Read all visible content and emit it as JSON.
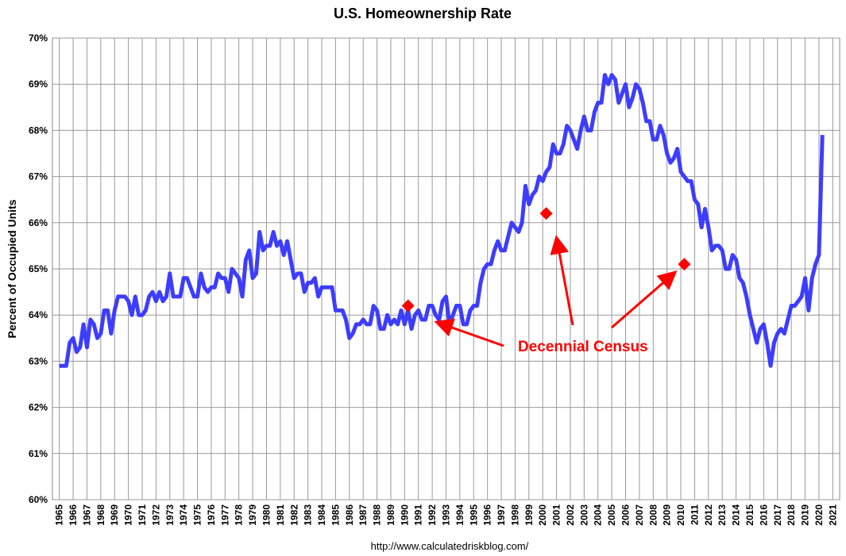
{
  "chart_data": {
    "type": "line",
    "title": "U.S. Homeownership Rate",
    "y_label": "Percent of Occupied Units",
    "source": "http://www.calculatedriskblog.com/",
    "annotation": "Decennial Census",
    "color": "#3d3dff",
    "x": [
      1965,
      1965.25,
      1965.5,
      1965.75,
      1966,
      1966.25,
      1966.5,
      1966.75,
      1967,
      1967.25,
      1967.5,
      1967.75,
      1968,
      1968.25,
      1968.5,
      1968.75,
      1969,
      1969.25,
      1969.5,
      1969.75,
      1970,
      1970.25,
      1970.5,
      1970.75,
      1971,
      1971.25,
      1971.5,
      1971.75,
      1972,
      1972.25,
      1972.5,
      1972.75,
      1973,
      1973.25,
      1973.5,
      1973.75,
      1974,
      1974.25,
      1974.5,
      1974.75,
      1975,
      1975.25,
      1975.5,
      1975.75,
      1976,
      1976.25,
      1976.5,
      1976.75,
      1977,
      1977.25,
      1977.5,
      1977.75,
      1978,
      1978.25,
      1978.5,
      1978.75,
      1979,
      1979.25,
      1979.5,
      1979.75,
      1980,
      1980.25,
      1980.5,
      1980.75,
      1981,
      1981.25,
      1981.5,
      1981.75,
      1982,
      1982.25,
      1982.5,
      1982.75,
      1983,
      1983.25,
      1983.5,
      1983.75,
      1984,
      1984.25,
      1984.5,
      1984.75,
      1985,
      1985.25,
      1985.5,
      1985.75,
      1986,
      1986.25,
      1986.5,
      1986.75,
      1987,
      1987.25,
      1987.5,
      1987.75,
      1988,
      1988.25,
      1988.5,
      1988.75,
      1989,
      1989.25,
      1989.5,
      1989.75,
      1990,
      1990.25,
      1990.5,
      1990.75,
      1991,
      1991.25,
      1991.5,
      1991.75,
      1992,
      1992.25,
      1992.5,
      1992.75,
      1993,
      1993.25,
      1993.5,
      1993.75,
      1994,
      1994.25,
      1994.5,
      1994.75,
      1995,
      1995.25,
      1995.5,
      1995.75,
      1996,
      1996.25,
      1996.5,
      1996.75,
      1997,
      1997.25,
      1997.5,
      1997.75,
      1998,
      1998.25,
      1998.5,
      1998.75,
      1999,
      1999.25,
      1999.5,
      1999.75,
      2000,
      2000.25,
      2000.5,
      2000.75,
      2001,
      2001.25,
      2001.5,
      2001.75,
      2002,
      2002.25,
      2002.5,
      2002.75,
      2003,
      2003.25,
      2003.5,
      2003.75,
      2004,
      2004.25,
      2004.5,
      2004.75,
      2005,
      2005.25,
      2005.5,
      2005.75,
      2006,
      2006.25,
      2006.5,
      2006.75,
      2007,
      2007.25,
      2007.5,
      2007.75,
      2008,
      2008.25,
      2008.5,
      2008.75,
      2009,
      2009.25,
      2009.5,
      2009.75,
      2010,
      2010.25,
      2010.5,
      2010.75,
      2011,
      2011.25,
      2011.5,
      2011.75,
      2012,
      2012.25,
      2012.5,
      2012.75,
      2013,
      2013.25,
      2013.5,
      2013.75,
      2014,
      2014.25,
      2014.5,
      2014.75,
      2015,
      2015.25,
      2015.5,
      2015.75,
      2016,
      2016.25,
      2016.5,
      2016.75,
      2017,
      2017.25,
      2017.5,
      2017.75,
      2018,
      2018.25,
      2018.5,
      2018.75,
      2019,
      2019.25,
      2019.5,
      2019.75,
      2020,
      2020.25
    ],
    "values": [
      62.9,
      62.9,
      62.9,
      63.4,
      63.5,
      63.2,
      63.3,
      63.8,
      63.3,
      63.9,
      63.8,
      63.5,
      63.6,
      64.1,
      64.1,
      63.6,
      64.1,
      64.4,
      64.4,
      64.4,
      64.3,
      64.0,
      64.4,
      64.0,
      64.0,
      64.1,
      64.4,
      64.5,
      64.3,
      64.5,
      64.3,
      64.4,
      64.9,
      64.4,
      64.4,
      64.4,
      64.8,
      64.8,
      64.6,
      64.4,
      64.4,
      64.9,
      64.6,
      64.5,
      64.6,
      64.6,
      64.9,
      64.8,
      64.8,
      64.5,
      65.0,
      64.9,
      64.8,
      64.4,
      65.2,
      65.4,
      64.8,
      64.9,
      65.8,
      65.4,
      65.5,
      65.5,
      65.8,
      65.5,
      65.6,
      65.3,
      65.6,
      65.2,
      64.8,
      64.9,
      64.9,
      64.5,
      64.7,
      64.7,
      64.8,
      64.4,
      64.6,
      64.6,
      64.6,
      64.6,
      64.1,
      64.1,
      64.1,
      63.9,
      63.5,
      63.6,
      63.8,
      63.8,
      63.9,
      63.8,
      63.8,
      64.2,
      64.1,
      63.7,
      63.7,
      64.0,
      63.8,
      63.9,
      63.8,
      64.1,
      63.8,
      64.1,
      63.7,
      64.0,
      64.1,
      63.9,
      63.9,
      64.2,
      64.2,
      64.0,
      63.9,
      64.3,
      64.4,
      63.8,
      64.0,
      64.2,
      64.2,
      63.8,
      63.8,
      64.1,
      64.2,
      64.2,
      64.7,
      65.0,
      65.1,
      65.1,
      65.4,
      65.6,
      65.4,
      65.4,
      65.7,
      66.0,
      65.9,
      65.8,
      66.0,
      66.8,
      66.4,
      66.6,
      66.7,
      67.0,
      66.9,
      67.1,
      67.2,
      67.7,
      67.5,
      67.5,
      67.7,
      68.1,
      68.0,
      67.8,
      67.6,
      68.0,
      68.3,
      68.0,
      68.0,
      68.4,
      68.6,
      68.6,
      69.2,
      69.0,
      69.2,
      69.1,
      68.6,
      68.8,
      69.0,
      68.5,
      68.7,
      69.0,
      68.9,
      68.6,
      68.2,
      68.2,
      67.8,
      67.8,
      68.1,
      67.9,
      67.5,
      67.3,
      67.4,
      67.6,
      67.1,
      67.0,
      66.9,
      66.9,
      66.5,
      66.4,
      65.9,
      66.3,
      65.9,
      65.4,
      65.5,
      65.5,
      65.4,
      65.0,
      65.0,
      65.3,
      65.2,
      64.8,
      64.7,
      64.4,
      64.0,
      63.7,
      63.4,
      63.7,
      63.8,
      63.4,
      62.9,
      63.4,
      63.6,
      63.7,
      63.6,
      63.9,
      64.2,
      64.2,
      64.3,
      64.4,
      64.8,
      64.1,
      64.8,
      65.1,
      65.3,
      67.9
    ],
    "census": {
      "color": "#ff0000",
      "x": [
        1990.25,
        2000.25,
        2010.25
      ],
      "values": [
        64.2,
        66.2,
        65.1
      ]
    },
    "xlim": [
      1964.5,
      2021.5
    ],
    "xticks": [
      1965,
      1966,
      1967,
      1968,
      1969,
      1970,
      1971,
      1972,
      1973,
      1974,
      1975,
      1976,
      1977,
      1978,
      1979,
      1980,
      1981,
      1982,
      1983,
      1984,
      1985,
      1986,
      1987,
      1988,
      1989,
      1990,
      1991,
      1992,
      1993,
      1994,
      1995,
      1996,
      1997,
      1998,
      1999,
      2000,
      2001,
      2002,
      2003,
      2004,
      2005,
      2006,
      2007,
      2008,
      2009,
      2010,
      2011,
      2012,
      2013,
      2014,
      2015,
      2016,
      2017,
      2018,
      2019,
      2020,
      2021
    ],
    "ylim": [
      60,
      70
    ],
    "yticks": [
      {
        "value": 60,
        "label": "60%"
      },
      {
        "value": 61,
        "label": "61%"
      },
      {
        "value": 62,
        "label": "62%"
      },
      {
        "value": 63,
        "label": "63%"
      },
      {
        "value": 64,
        "label": "64%"
      },
      {
        "value": 65,
        "label": "65%"
      },
      {
        "value": 66,
        "label": "66%"
      },
      {
        "value": 67,
        "label": "67%"
      },
      {
        "value": 68,
        "label": "68%"
      },
      {
        "value": 69,
        "label": "69%"
      },
      {
        "value": 70,
        "label": "70%"
      }
    ],
    "grid": true
  }
}
